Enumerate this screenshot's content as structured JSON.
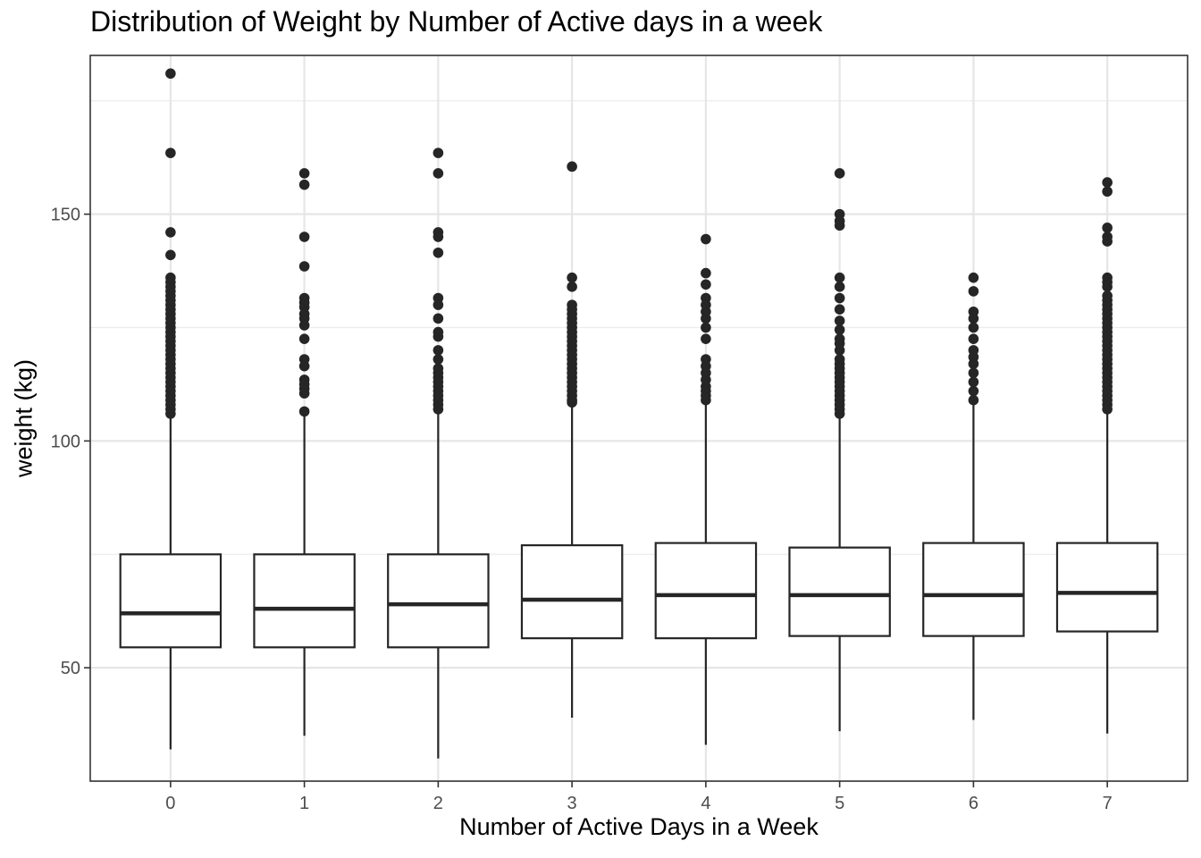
{
  "chart_data": {
    "type": "boxplot",
    "title": "Distribution of Weight by Number of Active days in a week",
    "xlabel": "Number of Active Days in a Week",
    "ylabel": "weight (kg)",
    "ylim": [
      25,
      185
    ],
    "y_ticks": [
      50,
      100,
      150
    ],
    "y_minor_ticks": [
      25,
      75,
      125,
      175
    ],
    "grid": true,
    "categories": [
      "0",
      "1",
      "2",
      "3",
      "4",
      "5",
      "6",
      "7"
    ],
    "boxes": [
      {
        "category": "0",
        "whisker_low": 32,
        "q1": 54.5,
        "median": 62,
        "q3": 75,
        "whisker_high": 105,
        "outliers": [
          181,
          163.5,
          146,
          141,
          136,
          135,
          134,
          133,
          132,
          131,
          130,
          129,
          128,
          127,
          126,
          125,
          124,
          123,
          122,
          121,
          120,
          119,
          118,
          117,
          116,
          115,
          114,
          113,
          112,
          111,
          110,
          109,
          108,
          107,
          106
        ]
      },
      {
        "category": "1",
        "whisker_low": 35,
        "q1": 54.5,
        "median": 63,
        "q3": 75,
        "whisker_high": 106,
        "outliers": [
          159,
          156.5,
          145,
          138.5,
          131.5,
          130.5,
          129.5,
          128,
          127,
          125.5,
          122.5,
          118,
          116.5,
          113.5,
          112.5,
          111.5,
          110.5,
          106.5
        ]
      },
      {
        "category": "2",
        "whisker_low": 30,
        "q1": 54.5,
        "median": 64,
        "q3": 75,
        "whisker_high": 106,
        "outliers": [
          163.5,
          159,
          146,
          145,
          141.5,
          131.5,
          130,
          127,
          124,
          123,
          120,
          118,
          116,
          115,
          114,
          113,
          112,
          111,
          110,
          109,
          108,
          107
        ]
      },
      {
        "category": "3",
        "whisker_low": 39,
        "q1": 56.5,
        "median": 65,
        "q3": 77,
        "whisker_high": 108,
        "outliers": [
          160.5,
          136,
          134,
          130,
          129,
          128,
          127,
          126,
          125,
          124,
          123,
          122,
          121,
          120,
          119,
          118,
          117,
          116,
          115,
          114,
          113,
          112,
          111,
          110,
          109,
          108.5
        ]
      },
      {
        "category": "4",
        "whisker_low": 33,
        "q1": 56.5,
        "median": 66,
        "q3": 77.5,
        "whisker_high": 108.5,
        "outliers": [
          144.5,
          137,
          134.5,
          131.5,
          130,
          128.5,
          127,
          125,
          122.5,
          118,
          116.5,
          115,
          113.5,
          112,
          111,
          110,
          109
        ]
      },
      {
        "category": "5",
        "whisker_low": 36,
        "q1": 57,
        "median": 66,
        "q3": 76.5,
        "whisker_high": 105.5,
        "outliers": [
          159,
          150,
          148.5,
          147.5,
          136,
          134,
          131.5,
          129,
          126.5,
          124.5,
          122.5,
          121.5,
          120,
          118,
          117,
          116,
          115,
          114,
          113,
          112,
          111,
          110,
          109,
          108,
          107,
          106
        ]
      },
      {
        "category": "6",
        "whisker_low": 38.5,
        "q1": 57,
        "median": 66,
        "q3": 77.5,
        "whisker_high": 108,
        "outliers": [
          136,
          133,
          128.5,
          127,
          125,
          122.5,
          120,
          118.5,
          117,
          115,
          113,
          111,
          109
        ]
      },
      {
        "category": "7",
        "whisker_low": 35.5,
        "q1": 58,
        "median": 66.5,
        "q3": 77.5,
        "whisker_high": 106,
        "outliers": [
          157,
          155,
          147,
          145,
          144,
          136,
          135,
          134,
          132,
          131,
          130,
          129,
          128,
          127,
          126,
          125,
          124,
          123,
          122,
          121,
          120,
          119,
          118,
          117,
          116,
          115,
          114,
          113,
          112,
          111,
          110,
          109,
          108,
          107
        ]
      }
    ]
  }
}
